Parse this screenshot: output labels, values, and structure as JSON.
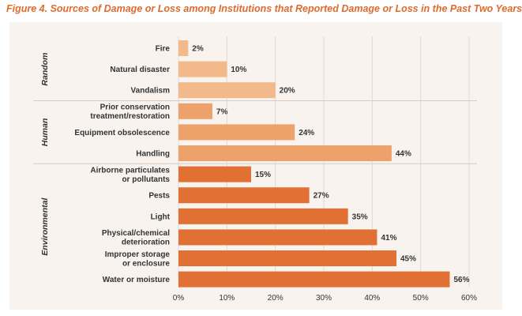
{
  "chart_data": {
    "type": "bar",
    "orientation": "horizontal",
    "title": "Figure 4. Sources of Damage or Loss among Institutions that Reported Damage or Loss in the Past Two Years",
    "xlim": [
      0,
      60
    ],
    "x_ticks": [
      "0%",
      "10%",
      "20%",
      "30%",
      "40%",
      "50%",
      "60%"
    ],
    "grid": "vertical",
    "groups": [
      {
        "name": "Random",
        "color": "#f2b98a",
        "items": [
          {
            "label": [
              "Fire"
            ],
            "value": 2,
            "value_label": "2%"
          },
          {
            "label": [
              "Natural disaster"
            ],
            "value": 10,
            "value_label": "10%"
          },
          {
            "label": [
              "Vandalism"
            ],
            "value": 20,
            "value_label": "20%"
          }
        ]
      },
      {
        "name": "Human",
        "color": "#eda16b",
        "items": [
          {
            "label": [
              "Prior conservation",
              "treatment/restoration"
            ],
            "value": 7,
            "value_label": "7%"
          },
          {
            "label": [
              "Equipment obsolescence"
            ],
            "value": 24,
            "value_label": "24%"
          },
          {
            "label": [
              "Handling"
            ],
            "value": 44,
            "value_label": "44%"
          }
        ]
      },
      {
        "name": "Environmental",
        "color": "#e07034",
        "items": [
          {
            "label": [
              "Airborne particulates",
              "or pollutants"
            ],
            "value": 15,
            "value_label": "15%"
          },
          {
            "label": [
              "Pests"
            ],
            "value": 27,
            "value_label": "27%"
          },
          {
            "label": [
              "Light"
            ],
            "value": 35,
            "value_label": "35%"
          },
          {
            "label": [
              "Physical/chemical",
              "deterioration"
            ],
            "value": 41,
            "value_label": "41%"
          },
          {
            "label": [
              "Improper storage",
              "or enclosure"
            ],
            "value": 45,
            "value_label": "45%"
          },
          {
            "label": [
              "Water or moisture"
            ],
            "value": 56,
            "value_label": "56%"
          }
        ]
      }
    ]
  }
}
